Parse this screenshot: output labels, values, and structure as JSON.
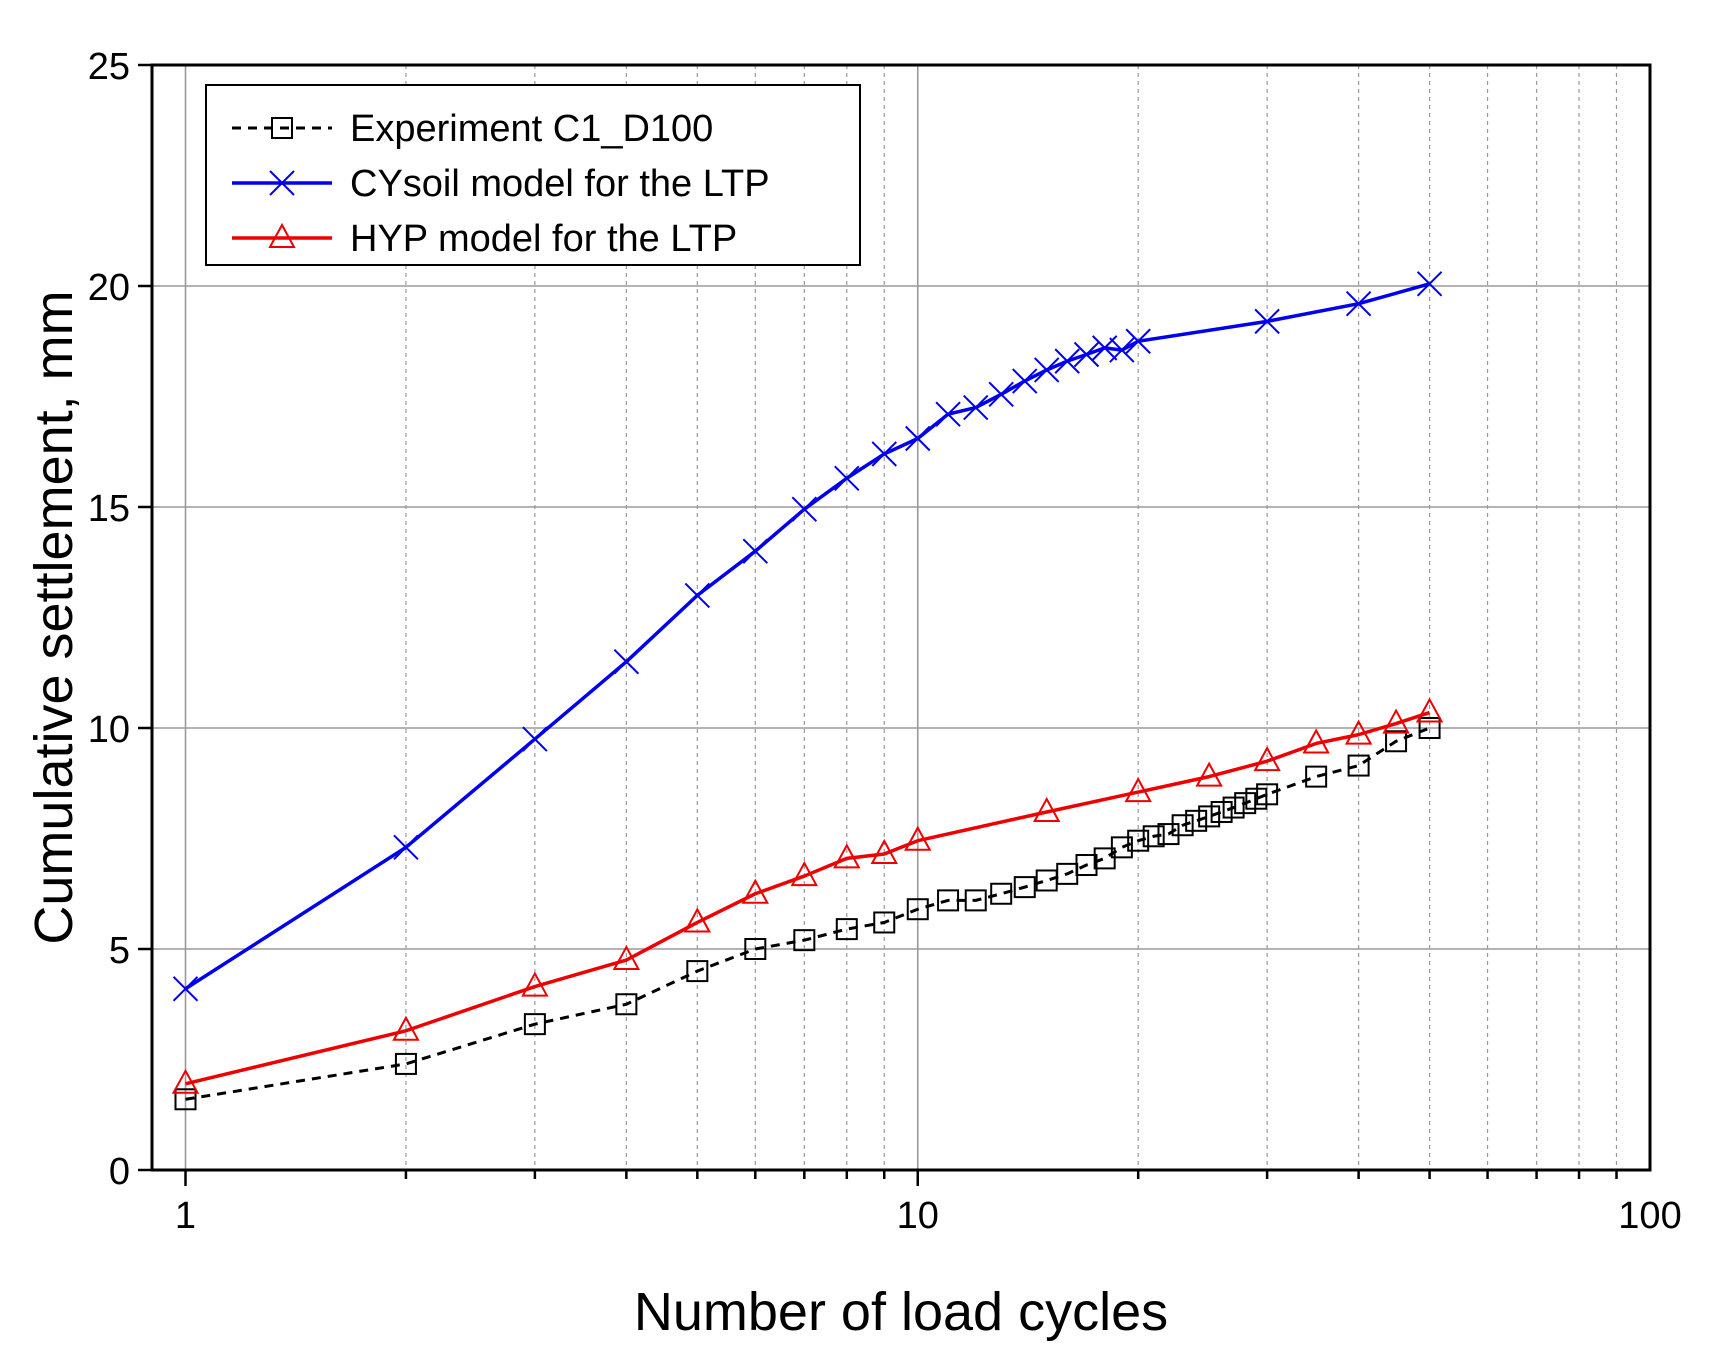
{
  "chart_data": {
    "type": "line",
    "title": "",
    "xlabel": "Number of load cycles",
    "ylabel": "Cumulative settlement, mm",
    "xscale": "log",
    "xlim": [
      0.9,
      100
    ],
    "ylim": [
      0,
      25
    ],
    "x_ticks": [
      {
        "value": 1,
        "label": "1"
      },
      {
        "value": 10,
        "label": "10"
      },
      {
        "value": 100,
        "label": "100"
      }
    ],
    "y_ticks": [
      {
        "value": 0,
        "label": "0"
      },
      {
        "value": 5,
        "label": "5"
      },
      {
        "value": 10,
        "label": "10"
      },
      {
        "value": 15,
        "label": "15"
      },
      {
        "value": 20,
        "label": "20"
      },
      {
        "value": 25,
        "label": "25"
      }
    ],
    "grid": true,
    "legend_position": "top-left",
    "series": [
      {
        "name": "Experiment C1_D100",
        "color": "#000000",
        "line_style": "dashed",
        "marker": "square",
        "x": [
          1,
          2,
          3,
          4,
          5,
          6,
          7,
          8,
          9,
          10,
          11,
          12,
          13,
          14,
          15,
          16,
          17,
          18,
          19,
          20,
          21,
          22,
          23,
          24,
          25,
          26,
          27,
          28,
          29,
          30,
          35,
          40,
          45,
          50
        ],
        "y": [
          1.6,
          2.4,
          3.3,
          3.75,
          4.5,
          5.0,
          5.2,
          5.45,
          5.6,
          5.9,
          6.1,
          6.1,
          6.25,
          6.4,
          6.55,
          6.7,
          6.9,
          7.05,
          7.3,
          7.45,
          7.55,
          7.6,
          7.8,
          7.9,
          8.0,
          8.1,
          8.2,
          8.3,
          8.4,
          8.5,
          8.9,
          9.15,
          9.7,
          10.0
        ]
      },
      {
        "name": "CYsoil model for the LTP",
        "color": "#0000ee",
        "line_style": "solid",
        "marker": "x",
        "x": [
          1,
          2,
          3,
          4,
          5,
          6,
          7,
          8,
          9,
          10,
          11,
          12,
          13,
          14,
          15,
          16,
          17,
          18,
          19,
          20,
          30,
          40,
          50
        ],
        "y": [
          4.1,
          7.3,
          9.75,
          11.5,
          13.0,
          14.0,
          14.95,
          15.65,
          16.2,
          16.55,
          17.1,
          17.25,
          17.55,
          17.85,
          18.1,
          18.3,
          18.45,
          18.6,
          18.55,
          18.75,
          19.2,
          19.6,
          20.05
        ]
      },
      {
        "name": "HYP model for the LTP",
        "color": "#ee0000",
        "line_style": "solid",
        "marker": "triangle",
        "x": [
          1,
          2,
          3,
          4,
          5,
          6,
          7,
          8,
          9,
          10,
          15,
          20,
          25,
          30,
          35,
          40,
          45,
          50
        ],
        "y": [
          1.95,
          3.15,
          4.15,
          4.75,
          5.6,
          6.25,
          6.65,
          7.05,
          7.15,
          7.45,
          8.1,
          8.55,
          8.9,
          9.25,
          9.65,
          9.85,
          10.1,
          10.35
        ]
      }
    ]
  }
}
